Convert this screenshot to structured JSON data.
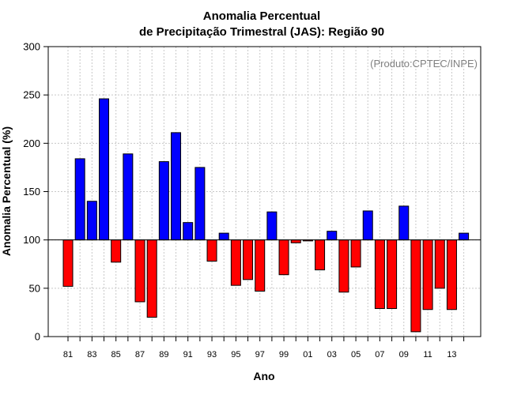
{
  "chart_data": {
    "type": "bar",
    "title_line1": "Anomalia Percentual",
    "title_line2": "de Precipitação Trimestral (JAS): Região 90",
    "xlabel": "Ano",
    "ylabel": "Anomalia Percentual (%)",
    "annotation": "(Produto:CPTEC/INPE)",
    "baseline": 100,
    "ylim": [
      0,
      300
    ],
    "yticks": [
      0,
      50,
      100,
      150,
      200,
      250,
      300
    ],
    "grid": true,
    "categories": [
      "81",
      "82",
      "83",
      "84",
      "85",
      "86",
      "87",
      "88",
      "89",
      "90",
      "91",
      "92",
      "93",
      "94",
      "95",
      "96",
      "97",
      "98",
      "99",
      "00",
      "01",
      "02",
      "03",
      "04",
      "05",
      "06",
      "07",
      "08",
      "09",
      "10",
      "11",
      "12",
      "13",
      "14"
    ],
    "tick_labels": [
      "81",
      "83",
      "85",
      "87",
      "89",
      "91",
      "93",
      "95",
      "97",
      "99",
      "01",
      "03",
      "05",
      "07",
      "09",
      "11",
      "13"
    ],
    "values": [
      52,
      184,
      140,
      246,
      77,
      189,
      36,
      20,
      181,
      211,
      118,
      175,
      78,
      107,
      53,
      59,
      47,
      129,
      64,
      97,
      99,
      69,
      109,
      46,
      72,
      130,
      29,
      29,
      135,
      5,
      28,
      50,
      28,
      107
    ],
    "colors": {
      "above": "#0000ff",
      "below": "#ff0000"
    }
  }
}
